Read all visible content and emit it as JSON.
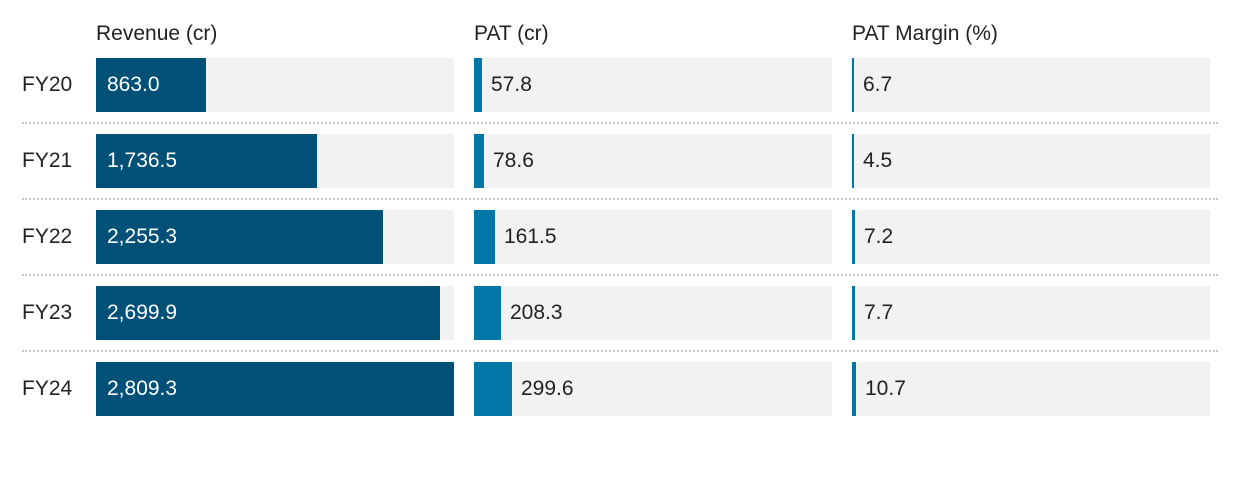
{
  "chart_data": {
    "type": "bar",
    "orientation": "horizontal",
    "categories": [
      "FY20",
      "FY21",
      "FY22",
      "FY23",
      "FY24"
    ],
    "series": [
      {
        "name": "Revenue (cr)",
        "values": [
          863.0,
          1736.5,
          2255.3,
          2699.9,
          2809.3
        ],
        "labels": [
          "863.0",
          "1,736.5",
          "2,255.3",
          "2,699.9",
          "2,809.3"
        ],
        "xlim": [
          0,
          2809.3
        ],
        "color": "#005078",
        "label_position": "inside"
      },
      {
        "name": "PAT (cr)",
        "values": [
          57.8,
          78.6,
          161.5,
          208.3,
          299.6
        ],
        "labels": [
          "57.8",
          "78.6",
          "161.5",
          "208.3",
          "299.6"
        ],
        "xlim": [
          0,
          2809.3
        ],
        "color": "#0077a6",
        "label_position": "outside"
      },
      {
        "name": "PAT Margin (%)",
        "values": [
          6.7,
          4.5,
          7.2,
          7.7,
          10.7
        ],
        "labels": [
          "6.7",
          "4.5",
          "7.2",
          "7.7",
          "10.7"
        ],
        "xlim": [
          0,
          1000
        ],
        "color": "#0077a6",
        "label_position": "outside"
      }
    ],
    "track_color": "#f2f2f2",
    "grid": false,
    "legend": "none"
  }
}
